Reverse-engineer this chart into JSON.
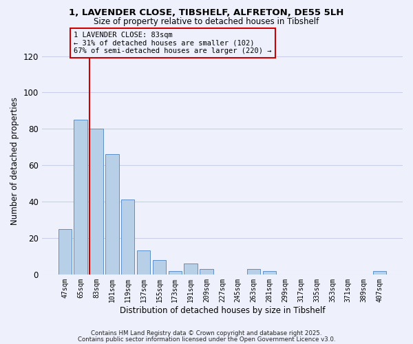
{
  "title_line1": "1, LAVENDER CLOSE, TIBSHELF, ALFRETON, DE55 5LH",
  "title_line2": "Size of property relative to detached houses in Tibshelf",
  "xlabel": "Distribution of detached houses by size in Tibshelf",
  "ylabel": "Number of detached properties",
  "categories": [
    "47sqm",
    "65sqm",
    "83sqm",
    "101sqm",
    "119sqm",
    "137sqm",
    "155sqm",
    "173sqm",
    "191sqm",
    "209sqm",
    "227sqm",
    "245sqm",
    "263sqm",
    "281sqm",
    "299sqm",
    "317sqm",
    "335sqm",
    "353sqm",
    "371sqm",
    "389sqm",
    "407sqm"
  ],
  "values": [
    25,
    85,
    80,
    66,
    41,
    13,
    8,
    2,
    6,
    3,
    0,
    0,
    3,
    2,
    0,
    0,
    0,
    0,
    0,
    0,
    2
  ],
  "bar_color": "#b8cfe8",
  "bar_edge_color": "#5b8fc9",
  "highlight_index": 2,
  "highlight_line_color": "#cc0000",
  "annotation_line1": "1 LAVENDER CLOSE: 83sqm",
  "annotation_line2": "← 31% of detached houses are smaller (102)",
  "annotation_line3": "67% of semi-detached houses are larger (220) →",
  "annotation_box_color": "#cc0000",
  "ylim": [
    0,
    125
  ],
  "yticks": [
    0,
    20,
    40,
    60,
    80,
    100,
    120
  ],
  "footnote1": "Contains HM Land Registry data © Crown copyright and database right 2025.",
  "footnote2": "Contains public sector information licensed under the Open Government Licence v3.0.",
  "bg_color": "#eef1fb",
  "grid_color": "#c8d0e8"
}
